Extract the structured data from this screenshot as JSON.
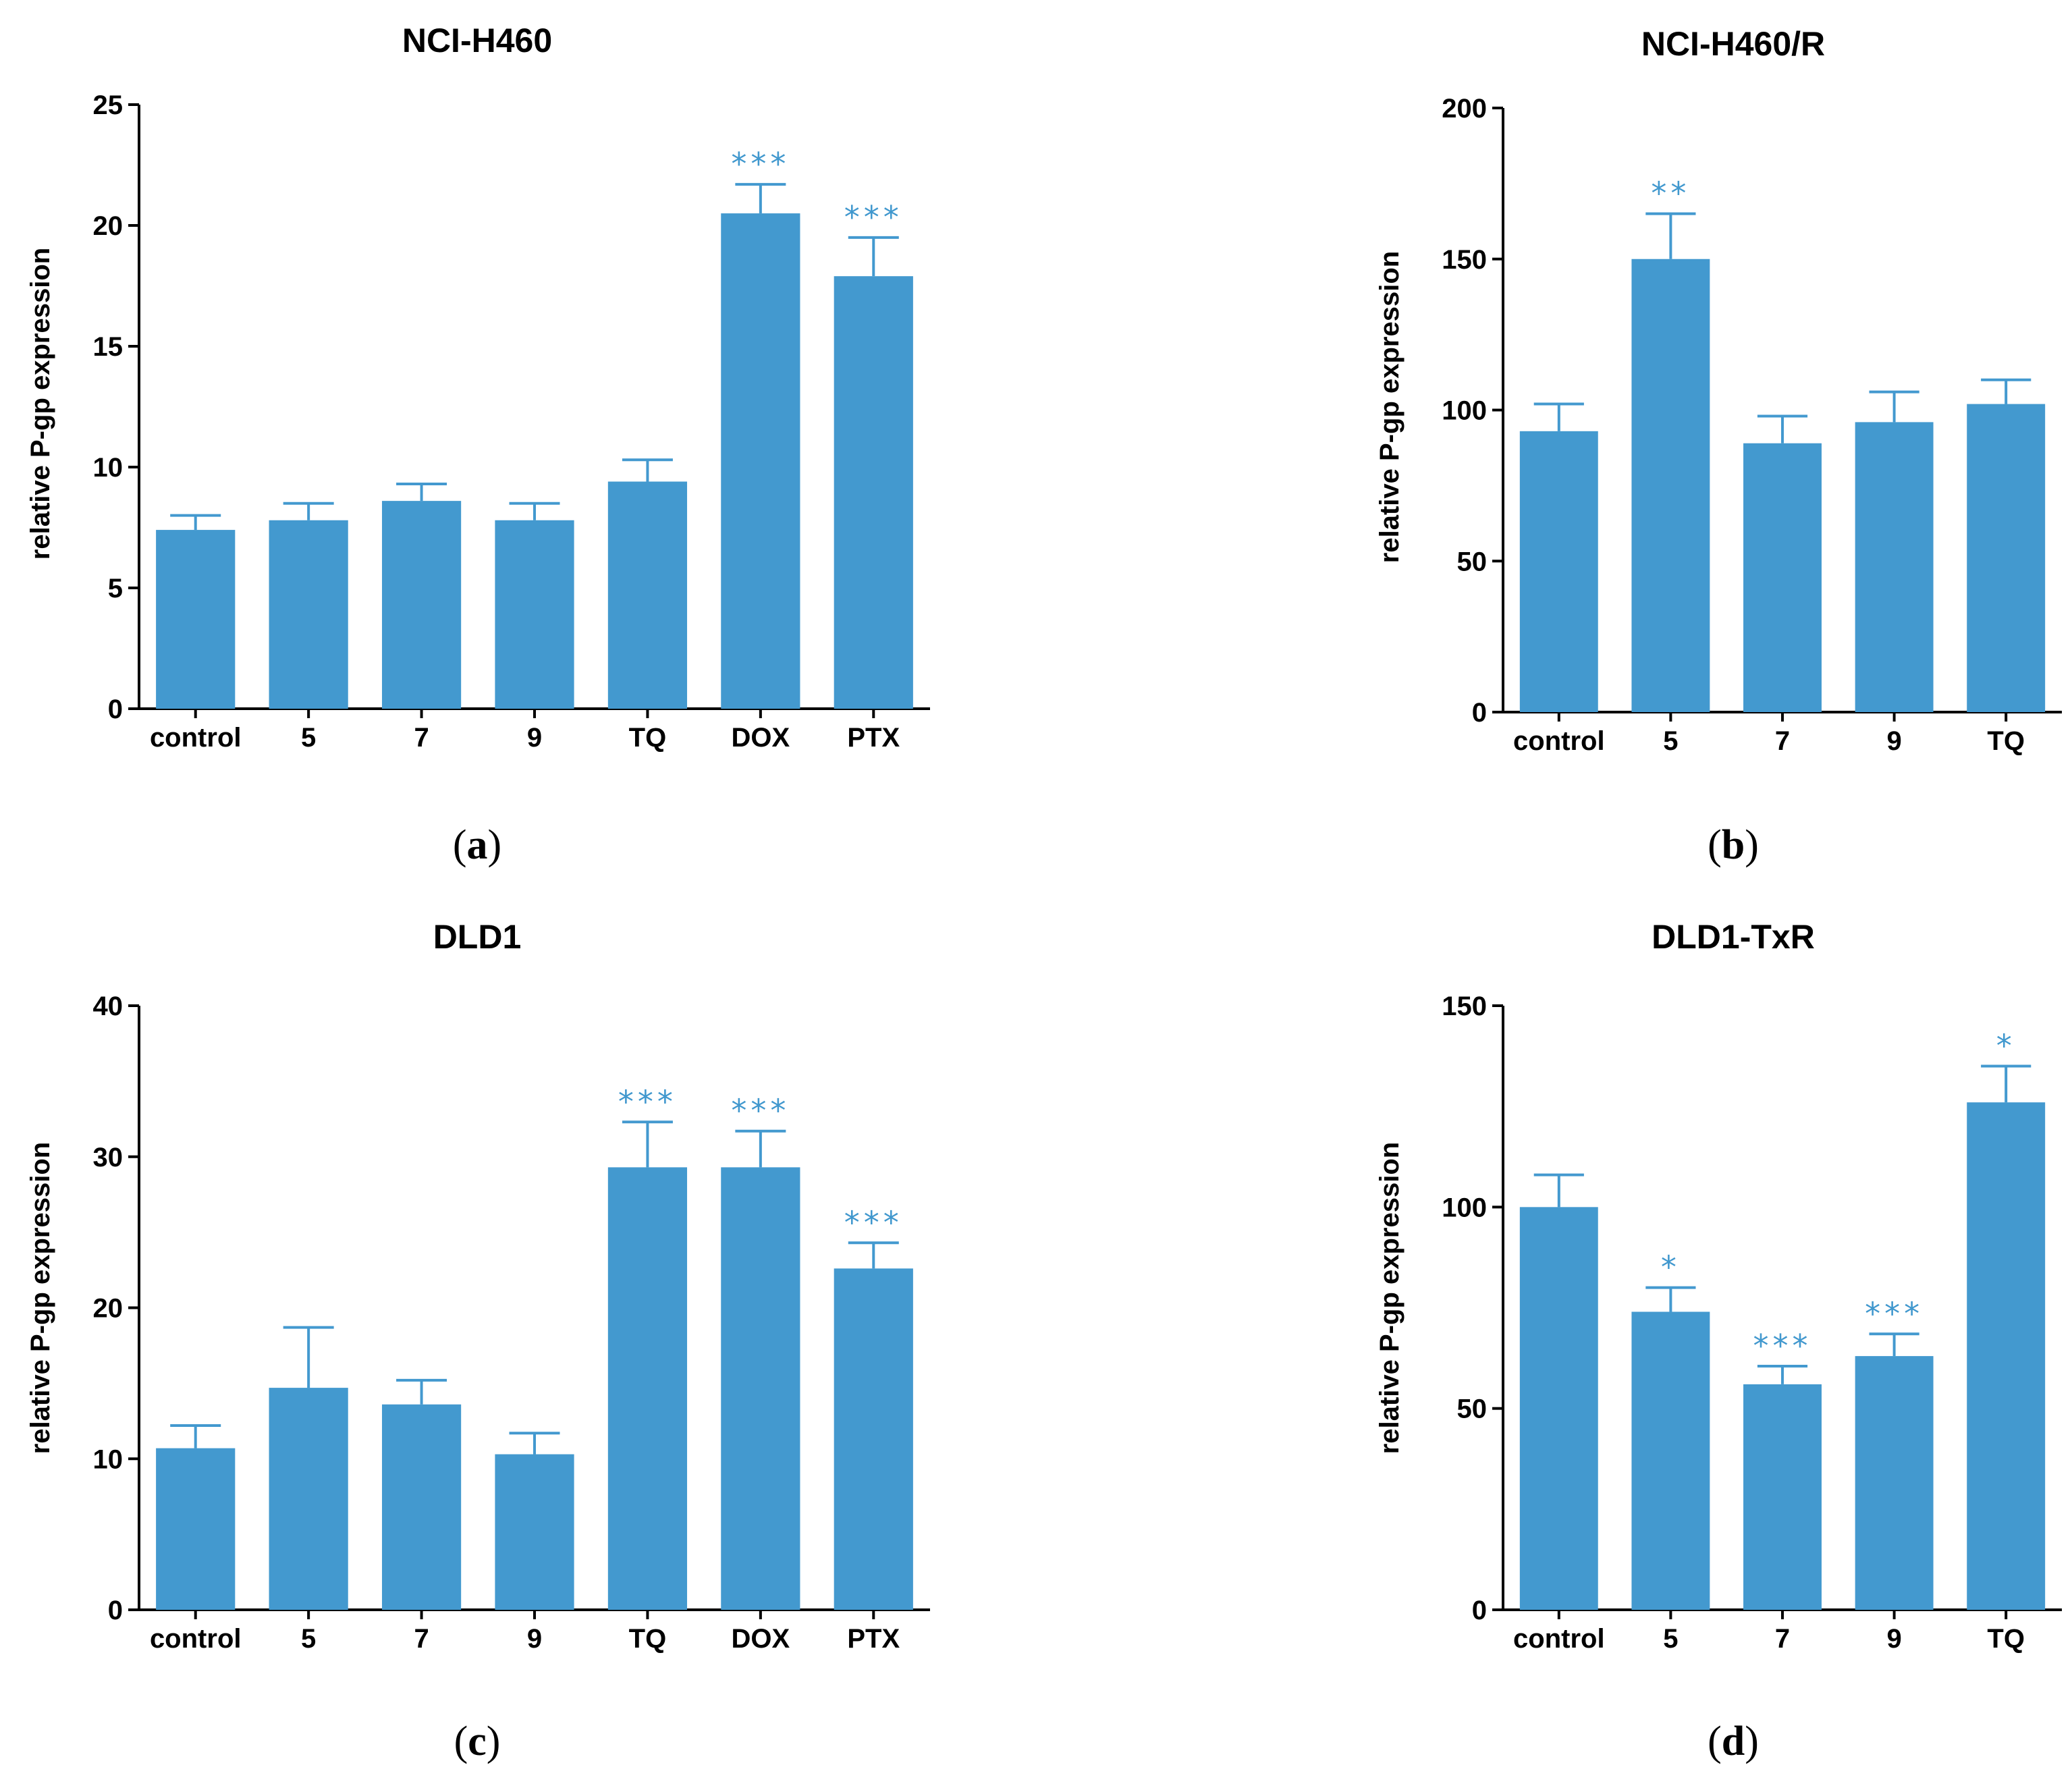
{
  "colors": {
    "bar": "#4399cf",
    "significance": "#4198ce",
    "axis": "#000000"
  },
  "chart_data": [
    {
      "type": "bar",
      "panel": "a",
      "title": "NCI-H460",
      "ylabel": "relative P-gp expression",
      "xlabel": "",
      "categories": [
        "control",
        "5",
        "7",
        "9",
        "TQ",
        "DOX",
        "PTX"
      ],
      "values": [
        7.4,
        7.8,
        8.6,
        7.8,
        9.4,
        20.5,
        17.9
      ],
      "errors": [
        0.6,
        0.7,
        0.7,
        0.7,
        0.9,
        1.2,
        1.6
      ],
      "significance": [
        "",
        "",
        "",
        "",
        "",
        "***",
        "***"
      ],
      "ylim": [
        0,
        25
      ],
      "yticks": [
        0,
        5,
        10,
        15,
        20,
        25
      ]
    },
    {
      "type": "bar",
      "panel": "b",
      "title": "NCI-H460/R",
      "ylabel": "relative P-gp expression",
      "xlabel": "",
      "categories": [
        "control",
        "5",
        "7",
        "9",
        "TQ"
      ],
      "values": [
        93,
        150,
        89,
        96,
        102
      ],
      "errors": [
        9,
        15,
        9,
        10,
        8
      ],
      "significance": [
        "",
        "**",
        "",
        "",
        ""
      ],
      "ylim": [
        0,
        200
      ],
      "yticks": [
        0,
        50,
        100,
        150,
        200
      ]
    },
    {
      "type": "bar",
      "panel": "c",
      "title": "DLD1",
      "ylabel": "relative P-gp expression",
      "xlabel": "",
      "categories": [
        "control",
        "5",
        "7",
        "9",
        "TQ",
        "DOX",
        "PTX"
      ],
      "values": [
        10.7,
        14.7,
        13.6,
        10.3,
        29.3,
        29.3,
        22.6
      ],
      "errors": [
        1.5,
        4.0,
        1.6,
        1.4,
        3.0,
        2.4,
        1.7
      ],
      "significance": [
        "",
        "",
        "",
        "",
        "***",
        "***",
        "***"
      ],
      "ylim": [
        0,
        40
      ],
      "yticks": [
        0,
        10,
        20,
        30,
        40
      ]
    },
    {
      "type": "bar",
      "panel": "d",
      "title": "DLD1-TxR",
      "ylabel": "relative P-gp expression",
      "xlabel": "",
      "categories": [
        "control",
        "5",
        "7",
        "9",
        "TQ"
      ],
      "values": [
        100,
        74,
        56,
        63,
        126
      ],
      "errors": [
        8,
        6,
        4.5,
        5.5,
        9
      ],
      "significance": [
        "",
        "*",
        "***",
        "***",
        "*"
      ],
      "ylim": [
        0,
        150
      ],
      "yticks": [
        0,
        50,
        100,
        150
      ]
    }
  ],
  "panel_labels": [
    "a",
    "b",
    "c",
    "d"
  ]
}
